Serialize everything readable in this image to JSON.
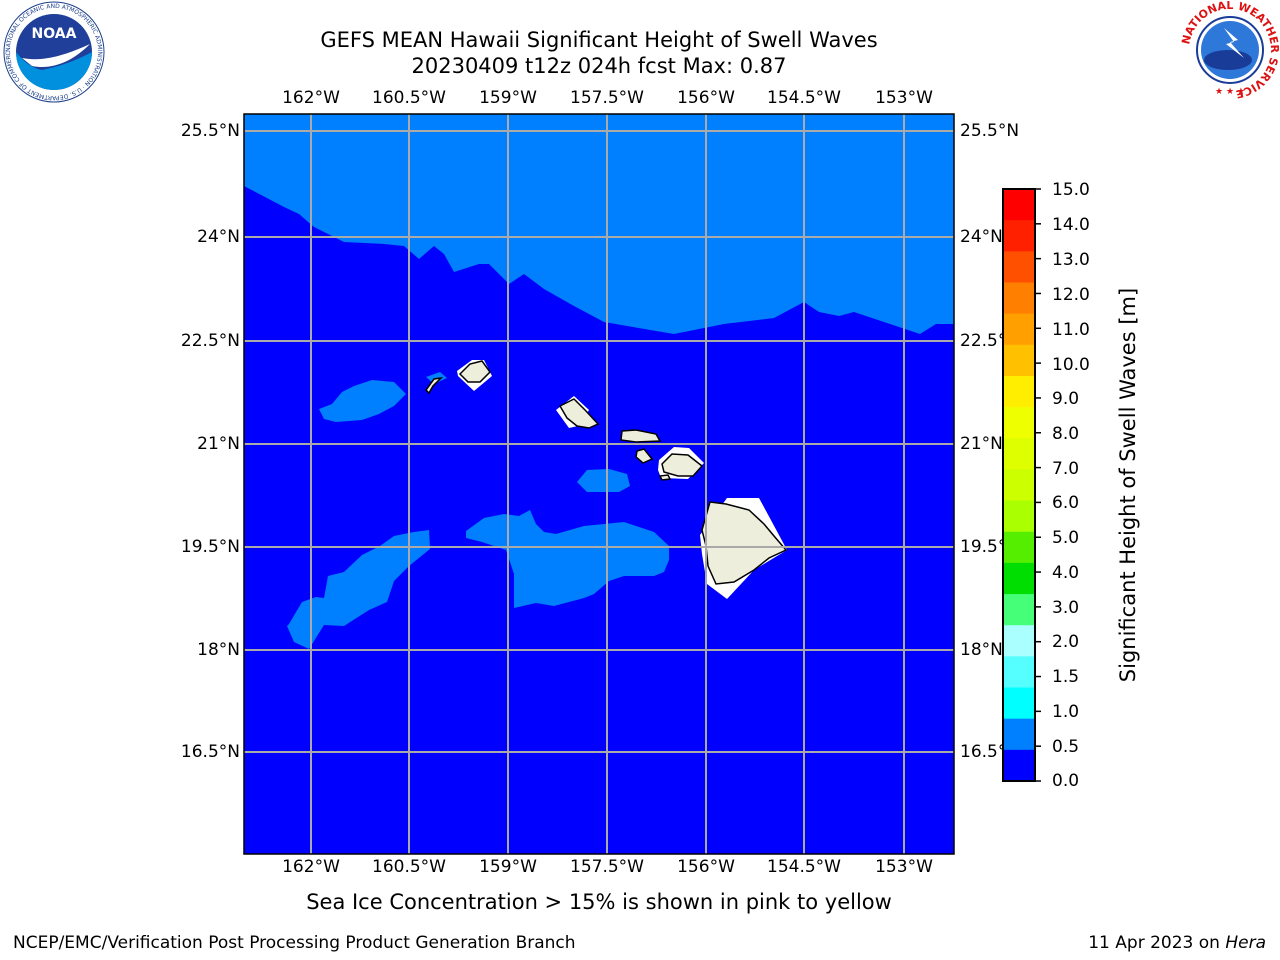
{
  "title": {
    "line1": "GEFS MEAN Hawaii Significant Height of Swell Waves",
    "line2": "20230409 t12z 024h fcst   Max: 0.87"
  },
  "map": {
    "lon_labels": [
      "162°W",
      "160.5°W",
      "159°W",
      "157.5°W",
      "156°W",
      "154.5°W",
      "153°W"
    ],
    "lat_labels": [
      "25.5°N",
      "24°N",
      "22.5°N",
      "21°N",
      "19.5°N",
      "18°N",
      "16.5°N"
    ],
    "colors": {
      "ocean_lt_0_5": "#0000ff",
      "ocean_0_5_1_0": "#0080ff",
      "land": "#eeeedd",
      "grid": "#aaaaaa"
    }
  },
  "colorbar": {
    "label": "Significant Height of Swell Waves [m]",
    "ticks": [
      "15.0",
      "14.0",
      "13.0",
      "12.0",
      "11.0",
      "10.0",
      "9.0",
      "8.0",
      "7.0",
      "6.0",
      "5.0",
      "4.0",
      "3.0",
      "2.0",
      "1.5",
      "1.0",
      "0.5",
      "0.0"
    ],
    "colors_top_to_bottom": [
      "#ff0000",
      "#ff2000",
      "#ff5000",
      "#ff8000",
      "#ffa000",
      "#ffc000",
      "#ffee00",
      "#eeff00",
      "#ddff00",
      "#ccff00",
      "#aaff00",
      "#55ee00",
      "#00dd00",
      "#44ff77",
      "#aaffff",
      "#55ffff",
      "#00ffff",
      "#0080ff",
      "#0000ff"
    ]
  },
  "logos": {
    "noaa_text": "NOAA",
    "noaa_ring": "NATIONAL OCEANIC AND ATMOSPHERIC ADMINISTRATION · U.S. DEPARTMENT OF COMMERCE",
    "nws_ring": "NATIONAL WEATHER SERVICE"
  },
  "subtitle": "Sea Ice Concentration > 15% is shown in pink to yellow",
  "footer": {
    "left": "NCEP/EMC/Verification Post Processing Product Generation Branch",
    "right_date": "11 Apr 2023 on",
    "right_host": "Hera"
  }
}
